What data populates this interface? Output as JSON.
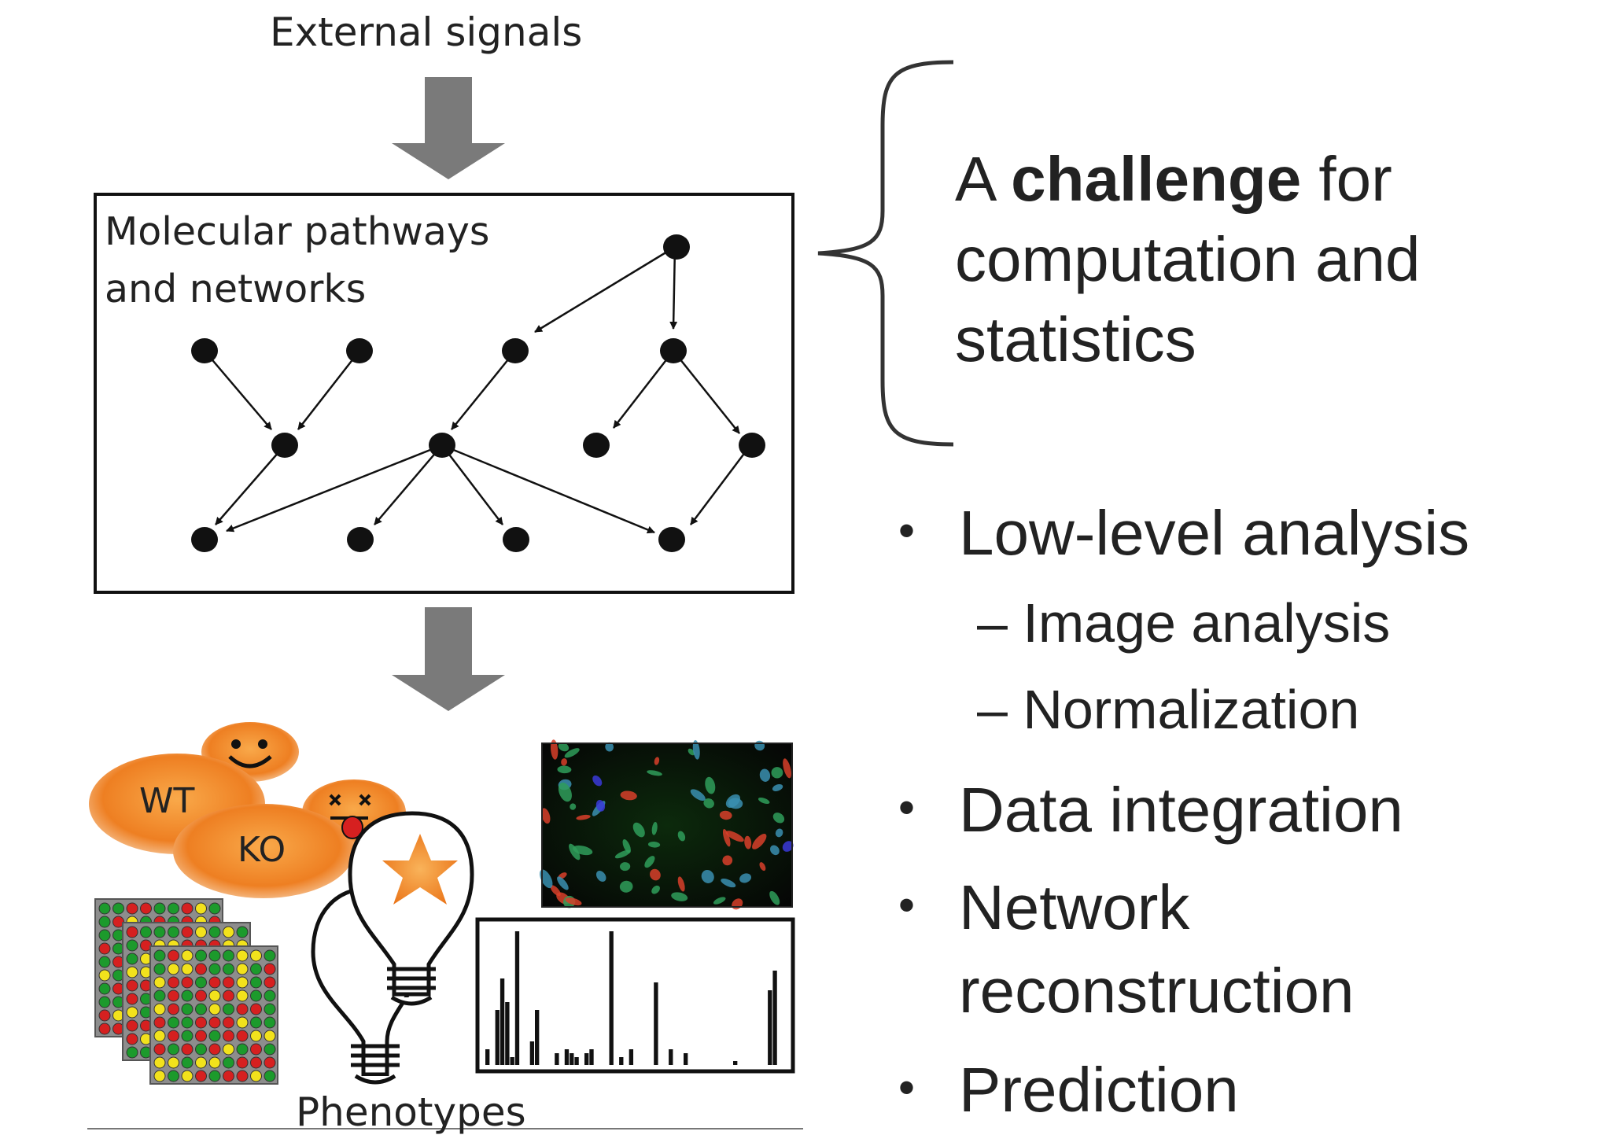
{
  "diagram": {
    "top_label": "External signals",
    "box_label_line1": "Molecular pathways",
    "box_label_line2": "and networks",
    "bottom_label": "Phenotypes",
    "wt_label": "WT",
    "ko_label": "KO"
  },
  "challenge": {
    "prefix": "A ",
    "emphasis": "challenge",
    "suffix": " for",
    "line2": "computation and",
    "line3": "statistics"
  },
  "bullets": [
    {
      "text": "Low-level analysis"
    },
    {
      "text": "Data integration"
    },
    {
      "text": "Network"
    },
    {
      "text": "Prediction"
    }
  ],
  "network_continuation": "reconstruction",
  "sub_bullets": [
    {
      "text": "– Image analysis"
    },
    {
      "text": "– Normalization"
    }
  ],
  "bullet_symbol": "•",
  "colors": {
    "arrow_gray": "#7a7a7a",
    "node": "#111111",
    "cell_orange": "#f08a2c",
    "dot_red": "#d62020",
    "dot_green": "#1c9a2c",
    "dot_yellow": "#f2e21c"
  },
  "icons": [
    "smiley-face-icon",
    "dead-face-icon",
    "lightbulb-icon",
    "star-icon"
  ]
}
